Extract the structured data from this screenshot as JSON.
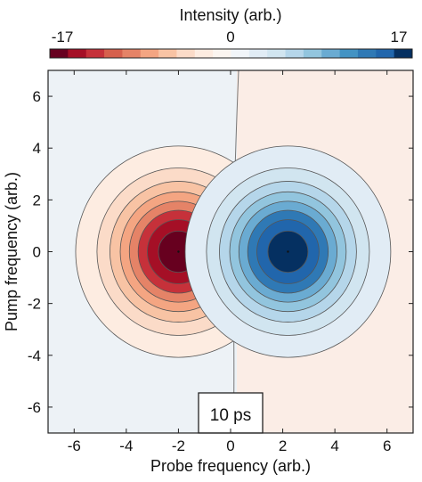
{
  "chart_data": {
    "type": "heatmap",
    "subtype": "2D contour map (filled contours)",
    "xlabel": "Probe frequency (arb.)",
    "ylabel": "Pump frequency (arb.)",
    "xlim": [
      -7,
      7
    ],
    "ylim": [
      -7,
      7
    ],
    "xticks": [
      -6,
      -4,
      -2,
      0,
      2,
      4,
      6
    ],
    "yticks": [
      -6,
      -4,
      -2,
      0,
      2,
      4,
      6
    ],
    "grid": false,
    "colorbar": {
      "title": "Intensity (arb.)",
      "min": -17,
      "max": 17,
      "tick_labels": [
        "-17",
        "0",
        "17"
      ],
      "position": "top",
      "levels": 20,
      "colors": [
        "#67001f",
        "#a50f26",
        "#c6313a",
        "#d6604d",
        "#e58367",
        "#f4a582",
        "#f8c3a4",
        "#fbdbc8",
        "#fdece1",
        "#fbf5f0",
        "#f1f5f9",
        "#e1ecf5",
        "#d1e5f0",
        "#b5d6ea",
        "#92c5de",
        "#6aabd2",
        "#4393c3",
        "#2f79b5",
        "#2166ac",
        "#053061"
      ]
    },
    "series": [
      {
        "center": [
          -2,
          0
        ],
        "peak": -17,
        "sigma_x": 2.2,
        "sigma_y": 2.4
      },
      {
        "center": [
          2.2,
          0
        ],
        "peak": 17,
        "sigma_x": 2.2,
        "sigma_y": 2.4
      }
    ],
    "contour_line_color": "#555555",
    "annotation": "10 ps"
  }
}
